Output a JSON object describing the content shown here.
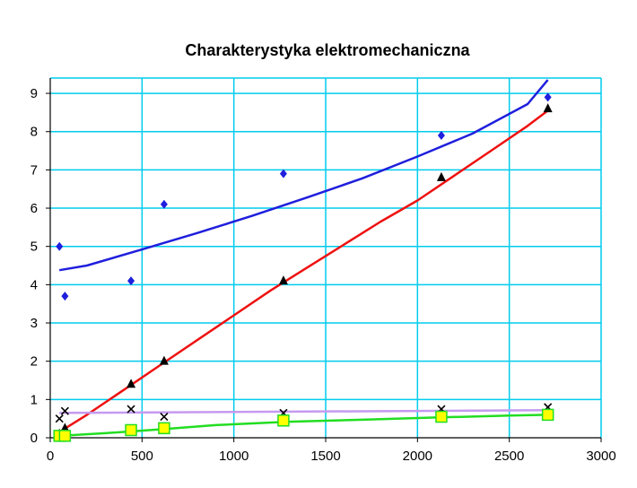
{
  "chart_data": {
    "type": "scatter",
    "title": "Charakterystyka elektromechaniczna",
    "xlabel": "",
    "ylabel": "",
    "xlim": [
      0,
      3000
    ],
    "ylim": [
      0,
      9.4
    ],
    "x_ticks": [
      0,
      500,
      1000,
      1500,
      2000,
      2500,
      3000
    ],
    "y_ticks": [
      0,
      1,
      2,
      3,
      4,
      5,
      6,
      7,
      8,
      9
    ],
    "grid": true,
    "legend": "none",
    "colors": {
      "plot_background": "#ffffff",
      "grid": "#00ccee",
      "series_blue": "#1f1fdd",
      "series_red": "#ee1111",
      "series_black": "#000000",
      "series_violet": "#c59af0",
      "series_green": "#22dd22",
      "marker_yellow": "#ffff00"
    },
    "series": [
      {
        "marker": "diamond",
        "color": "#1f1fdd",
        "x": [
          50,
          80,
          440,
          620,
          1270,
          2130,
          2710
        ],
        "y": [
          5.0,
          3.7,
          4.1,
          6.1,
          6.9,
          7.9,
          8.9
        ]
      },
      {
        "marker": "triangle",
        "color": "#000000",
        "x": [
          50,
          80,
          440,
          620,
          1270,
          2130,
          2710
        ],
        "y": [
          0.1,
          0.25,
          1.4,
          2.0,
          4.1,
          6.8,
          8.6
        ]
      },
      {
        "marker": "x",
        "color": "#000000",
        "x": [
          50,
          80,
          440,
          620,
          1270,
          2130,
          2710
        ],
        "y": [
          0.5,
          0.7,
          0.75,
          0.55,
          0.65,
          0.75,
          0.8
        ]
      },
      {
        "marker": "square",
        "color": "#22dd22",
        "fill": "#ffff00",
        "x": [
          50,
          80,
          440,
          620,
          1270,
          2130,
          2710
        ],
        "y": [
          0.05,
          0.05,
          0.2,
          0.25,
          0.45,
          0.55,
          0.6
        ]
      }
    ],
    "trendlines": [
      {
        "color": "#1f1fdd",
        "x": [
          50,
          200,
          500,
          800,
          1100,
          1400,
          1700,
          2000,
          2300,
          2600,
          2710
        ],
        "y": [
          4.38,
          4.5,
          4.92,
          5.35,
          5.8,
          6.28,
          6.78,
          7.35,
          7.95,
          8.72,
          9.35
        ]
      },
      {
        "color": "#ee1111",
        "x": [
          50,
          200,
          400,
          600,
          800,
          1000,
          1200,
          1400,
          1600,
          1800,
          2000,
          2200,
          2400,
          2600,
          2710
        ],
        "y": [
          0.15,
          0.6,
          1.25,
          1.9,
          2.55,
          3.2,
          3.85,
          4.45,
          5.05,
          5.65,
          6.2,
          6.85,
          7.5,
          8.15,
          8.55
        ]
      },
      {
        "color": "#c59af0",
        "x": [
          50,
          2710
        ],
        "y": [
          0.65,
          0.72
        ]
      },
      {
        "color": "#22dd22",
        "x": [
          50,
          300,
          600,
          900,
          1300,
          1700,
          2100,
          2500,
          2710
        ],
        "y": [
          0.05,
          0.12,
          0.22,
          0.33,
          0.42,
          0.47,
          0.53,
          0.58,
          0.6
        ]
      }
    ]
  }
}
